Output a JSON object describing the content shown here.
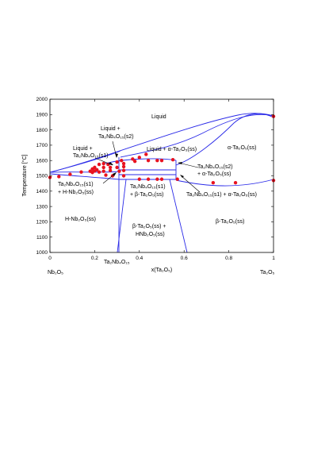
{
  "chart_data": {
    "type": "scatter",
    "ylabel": "Temperature [°C]",
    "xlabel": "x(Ta₂O₅)",
    "xlim": [
      0,
      1
    ],
    "ylim": [
      1000,
      2000
    ],
    "xticks": [
      "0",
      "0.2",
      "0.4",
      "0.6",
      "0.8",
      "1"
    ],
    "yticks": [
      "1000",
      "1100",
      "1200",
      "1300",
      "1400",
      "1500",
      "1600",
      "1700",
      "1800",
      "1900",
      "2000"
    ],
    "endpoint_labels": {
      "left": "Nb₂O₅",
      "right": "Ta₂O₅",
      "middle": "Ta₂Nb₄O₁₅"
    },
    "regions": {
      "liquid": "Liquid",
      "liquid_alpha": "Liquid + α-Ta₂O₅(ss)",
      "alpha": "α-Ta₂O₅(ss)",
      "liquid_s2_a": "Liquid +",
      "liquid_s2_b": "Ta₂Nb₄O₁₅(s2)",
      "liquid_s1_a": "Liquid +",
      "liquid_s1_b": "Ta₂Nb₄O₁₅(s1)",
      "s2_alpha_a": "Ta₂Nb₄O₁₅(s2)",
      "s2_alpha_b": "+ α-Ta₂O₅(ss)",
      "s1_h_a": "Ta₂Nb₄O₁₅(s1)",
      "s1_h_b": "+ H-Nb₂O₅(ss)",
      "s1_beta_a": "Ta₂Nb₄O₁₅(s1)",
      "s1_beta_b": "+ β-Ta₂O₅(ss)",
      "s1_alpha": "Ta₂Nb₄O₁₅(s1) + α-Ta₂O₅(ss)",
      "h_nb": "H-Nb₂O₅(ss)",
      "beta_hnb_a": "β-Ta₂O₅(ss) +",
      "beta_hnb_b": "HNb₂O₅(ss)",
      "beta": "β-Ta₂O₅(ss)"
    },
    "points": [
      {
        "x": 0.0,
        "y": 1490
      },
      {
        "x": 0.04,
        "y": 1495
      },
      {
        "x": 0.09,
        "y": 1510
      },
      {
        "x": 0.14,
        "y": 1525
      },
      {
        "x": 0.18,
        "y": 1530
      },
      {
        "x": 0.19,
        "y": 1545
      },
      {
        "x": 0.19,
        "y": 1522
      },
      {
        "x": 0.2,
        "y": 1555
      },
      {
        "x": 0.2,
        "y": 1532
      },
      {
        "x": 0.21,
        "y": 1540
      },
      {
        "x": 0.22,
        "y": 1575
      },
      {
        "x": 0.22,
        "y": 1525
      },
      {
        "x": 0.24,
        "y": 1580
      },
      {
        "x": 0.24,
        "y": 1555
      },
      {
        "x": 0.24,
        "y": 1530
      },
      {
        "x": 0.25,
        "y": 1505
      },
      {
        "x": 0.26,
        "y": 1575
      },
      {
        "x": 0.27,
        "y": 1555
      },
      {
        "x": 0.27,
        "y": 1535
      },
      {
        "x": 0.28,
        "y": 1500
      },
      {
        "x": 0.3,
        "y": 1590
      },
      {
        "x": 0.3,
        "y": 1555
      },
      {
        "x": 0.31,
        "y": 1530
      },
      {
        "x": 0.32,
        "y": 1600
      },
      {
        "x": 0.33,
        "y": 1580
      },
      {
        "x": 0.33,
        "y": 1560
      },
      {
        "x": 0.33,
        "y": 1535
      },
      {
        "x": 0.33,
        "y": 1500
      },
      {
        "x": 0.37,
        "y": 1610
      },
      {
        "x": 0.38,
        "y": 1595
      },
      {
        "x": 0.4,
        "y": 1620
      },
      {
        "x": 0.4,
        "y": 1478
      },
      {
        "x": 0.43,
        "y": 1640
      },
      {
        "x": 0.44,
        "y": 1600
      },
      {
        "x": 0.44,
        "y": 1478
      },
      {
        "x": 0.48,
        "y": 1600
      },
      {
        "x": 0.48,
        "y": 1478
      },
      {
        "x": 0.5,
        "y": 1600
      },
      {
        "x": 0.5,
        "y": 1478
      },
      {
        "x": 0.55,
        "y": 1605
      },
      {
        "x": 0.57,
        "y": 1478
      },
      {
        "x": 0.73,
        "y": 1455
      },
      {
        "x": 0.83,
        "y": 1455
      },
      {
        "x": 1.0,
        "y": 1888
      },
      {
        "x": 1.0,
        "y": 1470
      }
    ],
    "colors": {
      "line": "#2a2ae8",
      "point": "#e8121f",
      "axis": "#000000"
    }
  }
}
